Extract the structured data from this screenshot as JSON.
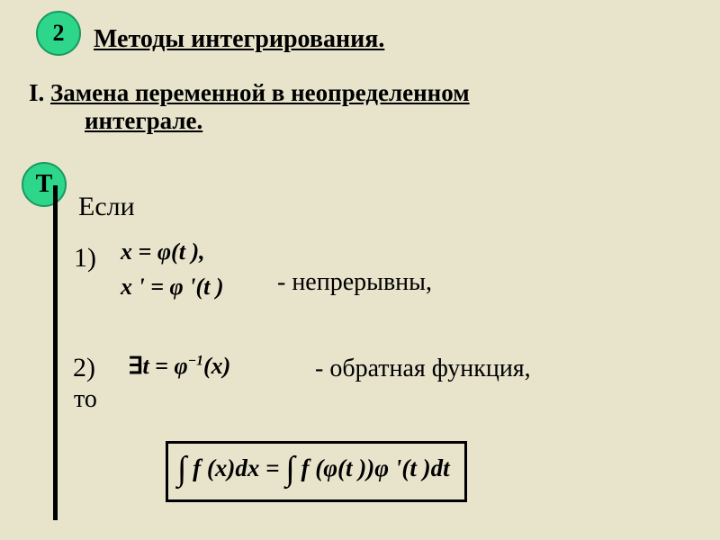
{
  "colors": {
    "background": "#e8e4cc",
    "badge_fill": "#2dd68a",
    "badge_border": "#1a9960",
    "text": "#000000"
  },
  "typography": {
    "family": "Times New Roman",
    "title_size": 28,
    "body_size": 28,
    "math_size": 26
  },
  "badge_number": "2",
  "badge_letter": "Т",
  "title": "Методы интегрирования.",
  "subtitle_roman": "I.",
  "subtitle_text1": "Замена переменной в неопределенном",
  "subtitle_text2": "интеграле.",
  "if_label": "Если",
  "item1": {
    "num": "1)",
    "line1": "x = φ(t ),",
    "line2": "x ' = φ '(t )",
    "desc": "- непрерывны,"
  },
  "item2": {
    "num": "2)",
    "eq_prefix": "∃",
    "eq": "t = φ⁻¹(x)",
    "desc": "- обратная функция,"
  },
  "then_label": "то",
  "formula": "∫ f (x)dx = ∫ f (φ(t ))φ '(t )dt"
}
